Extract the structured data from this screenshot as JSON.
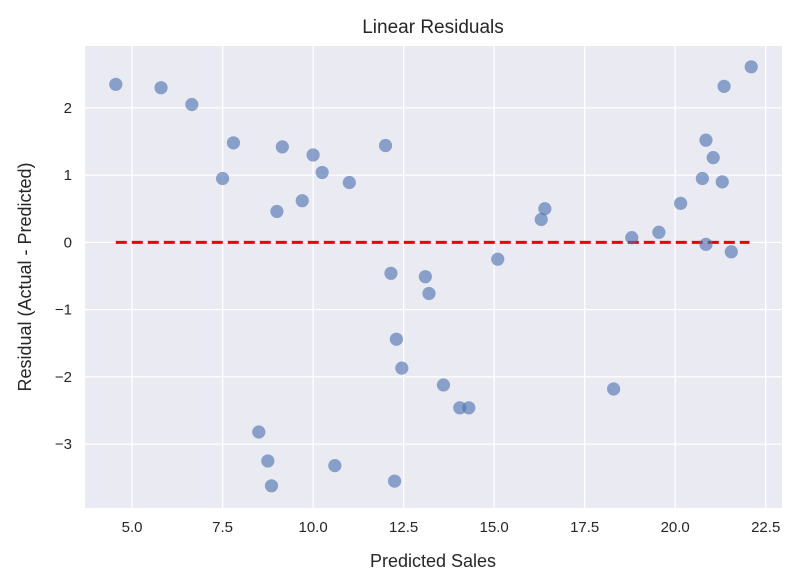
{
  "chart_data": {
    "type": "scatter",
    "title": "Linear Residuals",
    "xlabel": "Predicted Sales",
    "ylabel": "Residual (Actual - Predicted)",
    "xlim": [
      3.7,
      22.95
    ],
    "ylim": [
      -3.95,
      2.92
    ],
    "x_ticks": [
      5.0,
      7.5,
      10.0,
      12.5,
      15.0,
      17.5,
      20.0,
      22.5
    ],
    "x_tick_labels": [
      "5.0",
      "7.5",
      "10.0",
      "12.5",
      "15.0",
      "17.5",
      "20.0",
      "22.5"
    ],
    "y_ticks": [
      2,
      1,
      0,
      -1,
      -2,
      -3
    ],
    "y_tick_labels": [
      "2",
      "1",
      "0",
      "−1",
      "−2",
      "−3"
    ],
    "grid": true,
    "colors": {
      "background": "#eaeaf2",
      "grid": "#ffffff",
      "points": "#4c72b0",
      "reference_line": "#e8000b"
    },
    "reference_line": {
      "y": 0,
      "x_start": 4.55,
      "x_end": 22.05,
      "style": "dashed"
    },
    "points": [
      {
        "x": 4.55,
        "y": 2.35
      },
      {
        "x": 5.8,
        "y": 2.3
      },
      {
        "x": 6.65,
        "y": 2.05
      },
      {
        "x": 7.5,
        "y": 0.95
      },
      {
        "x": 7.8,
        "y": 1.48
      },
      {
        "x": 8.5,
        "y": -2.82
      },
      {
        "x": 8.75,
        "y": -3.25
      },
      {
        "x": 8.85,
        "y": -3.62
      },
      {
        "x": 9.0,
        "y": 0.46
      },
      {
        "x": 9.15,
        "y": 1.42
      },
      {
        "x": 9.7,
        "y": 0.62
      },
      {
        "x": 10.0,
        "y": 1.3
      },
      {
        "x": 10.25,
        "y": 1.04
      },
      {
        "x": 10.6,
        "y": -3.32
      },
      {
        "x": 11.0,
        "y": 0.89
      },
      {
        "x": 12.0,
        "y": 1.44
      },
      {
        "x": 12.15,
        "y": -0.46
      },
      {
        "x": 12.25,
        "y": -3.55
      },
      {
        "x": 12.3,
        "y": -1.44
      },
      {
        "x": 12.45,
        "y": -1.87
      },
      {
        "x": 13.1,
        "y": -0.51
      },
      {
        "x": 13.2,
        "y": -0.76
      },
      {
        "x": 13.6,
        "y": -2.12
      },
      {
        "x": 14.05,
        "y": -2.46
      },
      {
        "x": 14.3,
        "y": -2.46
      },
      {
        "x": 15.1,
        "y": -0.25
      },
      {
        "x": 16.3,
        "y": 0.34
      },
      {
        "x": 16.4,
        "y": 0.5
      },
      {
        "x": 18.3,
        "y": -2.18
      },
      {
        "x": 18.8,
        "y": 0.07
      },
      {
        "x": 19.55,
        "y": 0.15
      },
      {
        "x": 20.15,
        "y": 0.58
      },
      {
        "x": 20.75,
        "y": 0.95
      },
      {
        "x": 20.85,
        "y": -0.03
      },
      {
        "x": 20.85,
        "y": 1.52
      },
      {
        "x": 21.05,
        "y": 1.26
      },
      {
        "x": 21.3,
        "y": 0.9
      },
      {
        "x": 21.35,
        "y": 2.32
      },
      {
        "x": 21.55,
        "y": -0.14
      },
      {
        "x": 22.1,
        "y": 2.61
      }
    ]
  }
}
